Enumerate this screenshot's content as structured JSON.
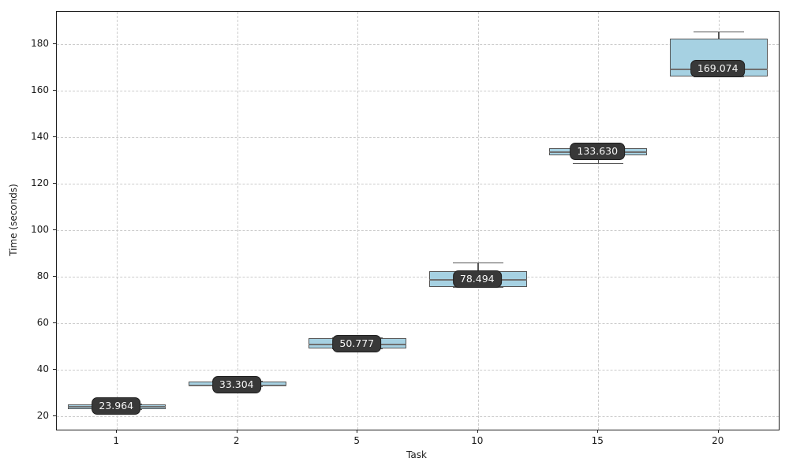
{
  "figure": {
    "title": "",
    "x_axis_label": "Task",
    "y_axis_label": "Time (seconds)"
  },
  "chart_data": {
    "type": "box",
    "title": "",
    "xlabel": "Task",
    "ylabel": "Time (seconds)",
    "categories": [
      "1",
      "2",
      "5",
      "10",
      "15",
      "20"
    ],
    "y_axis": {
      "ticks": [
        20,
        40,
        60,
        80,
        100,
        120,
        140,
        160,
        180
      ],
      "range": [
        14.15,
        194.0
      ],
      "grid": true
    },
    "x_axis": {
      "grid": true
    },
    "legend": "none",
    "boxes": [
      {
        "category": "1",
        "low": 22.6,
        "q1": 22.9,
        "median": 23.964,
        "q3": 25.1,
        "high": 25.4,
        "label": "23.964"
      },
      {
        "category": "2",
        "low": 32.4,
        "q1": 32.7,
        "median": 33.304,
        "q3": 34.9,
        "high": 35.2,
        "label": "33.304"
      },
      {
        "category": "5",
        "low": 48.8,
        "q1": 49.2,
        "median": 50.777,
        "q3": 53.5,
        "high": 53.9,
        "label": "50.777"
      },
      {
        "category": "10",
        "low": 75.2,
        "q1": 75.6,
        "median": 78.494,
        "q3": 82.2,
        "high": 86.2,
        "label": "78.494"
      },
      {
        "category": "15",
        "low": 128.4,
        "q1": 132.2,
        "median": 133.63,
        "q3": 135.3,
        "high": 135.7,
        "label": "133.630"
      },
      {
        "category": "20",
        "low": 165.7,
        "q1": 166.1,
        "median": 169.074,
        "q3": 182.5,
        "high": 185.6,
        "label": "169.074"
      }
    ],
    "colors": {
      "box_fill": "#a6d1e2",
      "box_edge": "#555555",
      "whisker": "#555555",
      "median": "#6f6f6f",
      "grid": "#cccccc",
      "spine": "#1c1c1c",
      "tick_text": "#1a1a1a",
      "label_bg": "#383838",
      "label_border": "#1f1f1f",
      "label_text": "#f5f5f5"
    }
  }
}
